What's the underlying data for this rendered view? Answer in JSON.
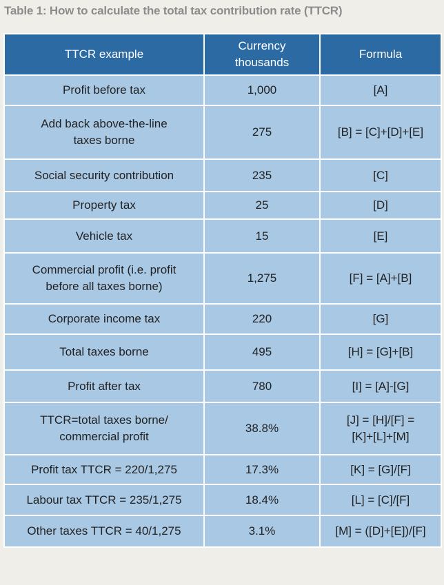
{
  "title": "Table 1: How to calculate the total tax contribution rate (TTCR)",
  "table": {
    "header": [
      "TTCR example",
      "Currency\nthousands",
      "Formula"
    ],
    "rows": [
      [
        "Profit before tax",
        "1,000",
        "[A]"
      ],
      [
        "Add back above-the-line\ntaxes borne",
        "275",
        "[B] = [C]+[D]+[E]"
      ],
      [
        "Social security contribution",
        "235",
        "[C]"
      ],
      [
        "Property tax",
        "25",
        "[D]"
      ],
      [
        "Vehicle tax",
        "15",
        "[E]"
      ],
      [
        "Commercial profit (i.e. profit\nbefore all taxes borne)",
        "1,275",
        "[F] = [A]+[B]"
      ],
      [
        "Corporate income tax",
        "220",
        "[G]"
      ],
      [
        "Total taxes borne",
        "495",
        "[H] = [G]+[B]"
      ],
      [
        "Profit after tax",
        "780",
        "[I] = [A]-[G]"
      ],
      [
        "TTCR=total taxes borne/\ncommercial profit",
        "38.8%",
        "[J] = [H]/[F] =\n[K]+[L]+[M]"
      ],
      [
        "Profit tax TTCR = 220/1,275",
        "17.3%",
        "[K] = [G]/[F]"
      ],
      [
        "Labour tax TTCR = 235/1,275",
        "18.4%",
        "[L] = [C]/[F]"
      ],
      [
        "Other taxes TTCR = 40/1,275",
        "3.1%",
        "[M] = ([D]+[E])/[F]"
      ]
    ]
  }
}
